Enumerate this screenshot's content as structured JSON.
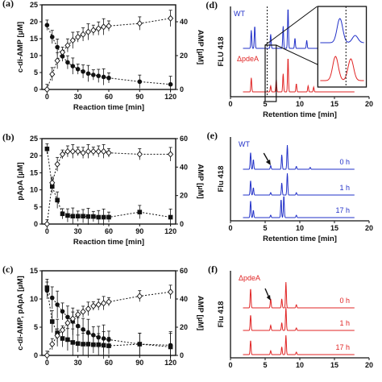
{
  "figure": {
    "panel_labels": [
      "(a)",
      "(b)",
      "(c)",
      "(d)",
      "(e)",
      "(f)"
    ]
  },
  "colors": {
    "blue": "#2231c8",
    "red": "#e02525",
    "black": "#111111"
  },
  "chart_data": [
    {
      "id": "a",
      "type": "scatter",
      "title": "",
      "xlabel": "Reaction time [min]",
      "ylabel": "c-di-AMP [µM]",
      "y2label": "AMP [µM]",
      "xlim": [
        -5,
        125
      ],
      "ylim": [
        0,
        25
      ],
      "y2lim": [
        0,
        50
      ],
      "xticks": [
        0,
        30,
        60,
        90,
        120
      ],
      "yticks": [
        0,
        5,
        10,
        15,
        20,
        25
      ],
      "y2ticks": [
        0,
        20,
        40
      ],
      "series": [
        {
          "marker": "filled-circle",
          "axis": "left",
          "x": [
            0,
            5,
            10,
            15,
            20,
            25,
            30,
            35,
            40,
            45,
            50,
            55,
            60,
            90,
            120
          ],
          "y": [
            19,
            15.5,
            12.5,
            9.8,
            8,
            6.9,
            6,
            5.3,
            4.7,
            4.3,
            4,
            3.7,
            3.4,
            2.3,
            1.5
          ]
        },
        {
          "marker": "open-diamond",
          "axis": "right",
          "x": [
            0,
            5,
            10,
            15,
            20,
            25,
            30,
            35,
            40,
            45,
            50,
            55,
            60,
            90,
            120
          ],
          "y": [
            0,
            9,
            17,
            22,
            26,
            29,
            31,
            32.5,
            34,
            35,
            36,
            37,
            37.5,
            39,
            42
          ]
        }
      ]
    },
    {
      "id": "b",
      "type": "scatter",
      "title": "",
      "xlabel": "Reaction time [min]",
      "ylabel": "pApA [µM]",
      "y2label": "AMP [µM]",
      "xlim": [
        -5,
        125
      ],
      "ylim": [
        0,
        25
      ],
      "y2lim": [
        0,
        60
      ],
      "xticks": [
        0,
        30,
        60,
        90,
        120
      ],
      "yticks": [
        0,
        5,
        10,
        15,
        20,
        25
      ],
      "y2ticks": [
        0,
        20,
        40,
        60
      ],
      "series": [
        {
          "marker": "filled-square",
          "axis": "left",
          "x": [
            0,
            5,
            10,
            15,
            20,
            25,
            30,
            35,
            40,
            45,
            50,
            55,
            60,
            90,
            120
          ],
          "y": [
            22,
            11,
            7,
            3,
            2.5,
            2.3,
            2.3,
            2.3,
            2.2,
            2.2,
            2,
            2,
            2,
            3.5,
            2
          ]
        },
        {
          "marker": "open-diamond",
          "axis": "right",
          "x": [
            0,
            5,
            10,
            15,
            20,
            25,
            30,
            35,
            40,
            45,
            50,
            55,
            60,
            90,
            120
          ],
          "y": [
            0,
            29,
            42,
            49,
            51,
            51,
            51,
            50,
            51,
            51,
            51,
            51,
            50,
            49,
            49
          ]
        }
      ]
    },
    {
      "id": "c",
      "type": "scatter",
      "title": "",
      "xlabel": "",
      "ylabel": "c-di-AMP, pApA [µM]",
      "y2label": "AMP [µM]",
      "xlim": [
        -5,
        125
      ],
      "ylim": [
        0,
        15
      ],
      "y2lim": [
        0,
        60
      ],
      "xticks": [
        0,
        30,
        60,
        90,
        120
      ],
      "yticks": [
        0,
        5,
        10,
        15
      ],
      "y2ticks": [
        0,
        20,
        40,
        60
      ],
      "series": [
        {
          "marker": "filled-circle",
          "axis": "left",
          "x": [
            0,
            5,
            10,
            15,
            20,
            25,
            30,
            35,
            40,
            45,
            50,
            55,
            60,
            90,
            120
          ],
          "y": [
            11.5,
            10.2,
            9,
            7.8,
            6.8,
            6,
            5.2,
            4.6,
            4,
            3.6,
            3.2,
            3,
            2.8,
            2,
            1.8
          ]
        },
        {
          "marker": "filled-square",
          "axis": "left",
          "x": [
            0,
            5,
            10,
            15,
            20,
            25,
            30,
            35,
            40,
            45,
            50,
            55,
            60,
            90,
            120
          ],
          "y": [
            12,
            6,
            4,
            3,
            2.8,
            2.3,
            2.1,
            2,
            2,
            1.9,
            1.9,
            1.8,
            1.7,
            2,
            1.5
          ]
        },
        {
          "marker": "open-diamond",
          "axis": "right",
          "x": [
            0,
            5,
            10,
            15,
            20,
            25,
            30,
            35,
            40,
            45,
            50,
            55,
            60,
            90,
            120
          ],
          "y": [
            0,
            8,
            14,
            18,
            23,
            26,
            29,
            31,
            33,
            35,
            36,
            37,
            38,
            42,
            45
          ]
        }
      ]
    },
    {
      "id": "d",
      "type": "line",
      "xlabel": "Retention time [min]",
      "ylabel": "FLU 418",
      "xlim": [
        0,
        20
      ],
      "xticks": [
        0,
        5,
        10,
        15,
        20
      ],
      "traces": [
        {
          "name": "WT",
          "color": "blue",
          "peaks": [
            [
              3,
              0.45
            ],
            [
              3.5,
              0.55
            ],
            [
              5.8,
              0.35
            ],
            [
              7.6,
              0.55
            ],
            [
              8.3,
              1
            ],
            [
              9.3,
              0.25
            ],
            [
              11,
              0.2
            ]
          ]
        },
        {
          "name": "ΔpdeA",
          "color": "red",
          "peaks": [
            [
              3,
              0.35
            ],
            [
              5.8,
              0.15
            ],
            [
              6.6,
              0.3
            ],
            [
              7.6,
              0.45
            ],
            [
              8.3,
              0.85
            ],
            [
              9.5,
              0.2
            ],
            [
              11.2,
              0.15
            ],
            [
              12,
              0.12
            ]
          ]
        }
      ]
    },
    {
      "id": "e",
      "type": "line",
      "xlabel": "Retention time [min]",
      "ylabel": "Flu 418",
      "xlim": [
        0,
        20
      ],
      "xticks": [
        0,
        5,
        10,
        15,
        20
      ],
      "strain": "WT",
      "traces": [
        {
          "name": "0 h",
          "color": "blue",
          "peaks": [
            [
              2.9,
              0.7
            ],
            [
              3.3,
              0.4
            ],
            [
              5.8,
              0.15
            ],
            [
              7.4,
              0.6
            ],
            [
              8.2,
              1
            ],
            [
              9.5,
              0.12
            ],
            [
              11.5,
              0.08
            ]
          ]
        },
        {
          "name": "1 h",
          "color": "blue",
          "peaks": [
            [
              2.9,
              0.6
            ],
            [
              3.3,
              0.3
            ],
            [
              5.8,
              0.1
            ],
            [
              7.4,
              0.5
            ],
            [
              8.2,
              0.9
            ],
            [
              9.5,
              0.1
            ]
          ]
        },
        {
          "name": "17 h",
          "color": "blue",
          "peaks": [
            [
              2.9,
              0.7
            ],
            [
              3.3,
              0.3
            ],
            [
              5.8,
              0.1
            ],
            [
              7.3,
              0.75
            ],
            [
              7.7,
              0.9
            ],
            [
              9.5,
              0.1
            ]
          ]
        }
      ]
    },
    {
      "id": "f",
      "type": "line",
      "xlabel": "",
      "ylabel": "Flu 418",
      "xlim": [
        0,
        20
      ],
      "xticks": [
        0,
        5,
        10,
        15,
        20
      ],
      "strain": "ΔpdeA",
      "traces": [
        {
          "name": "0 h",
          "color": "red",
          "peaks": [
            [
              2.9,
              0.75
            ],
            [
              5.8,
              0.35
            ],
            [
              7.4,
              0.35
            ],
            [
              8.0,
              1
            ],
            [
              9.5,
              0.12
            ]
          ]
        },
        {
          "name": "1 h",
          "color": "red",
          "peaks": [
            [
              2.9,
              0.6
            ],
            [
              5.8,
              0.2
            ],
            [
              7.4,
              0.3
            ],
            [
              8.0,
              0.9
            ],
            [
              9.5,
              0.1
            ]
          ]
        },
        {
          "name": "17 h",
          "color": "red",
          "peaks": [
            [
              2.9,
              0.55
            ],
            [
              5.8,
              0.15
            ],
            [
              7.4,
              0.3
            ],
            [
              8.0,
              0.75
            ],
            [
              9.5,
              0.1
            ]
          ]
        }
      ]
    }
  ]
}
